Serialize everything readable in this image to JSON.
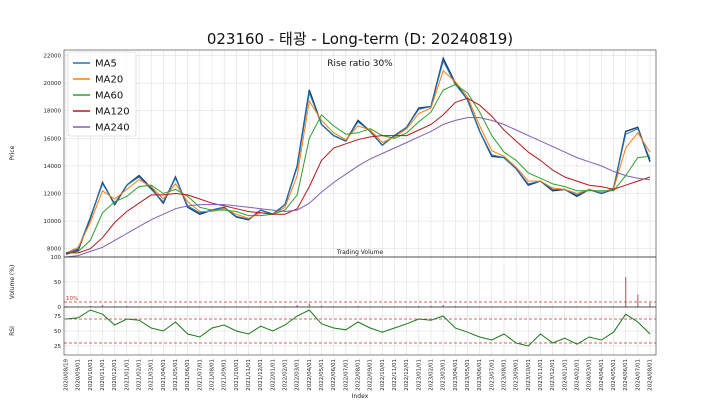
{
  "chart_data": {
    "type": "line",
    "title": "023160 - 태광 - Long-term (D: 20240819)",
    "annotation": "Rise ratio 30%",
    "price_panel": {
      "ylabel": "Price",
      "ylim": [
        7400,
        22400
      ],
      "yticks": [
        8000,
        10000,
        12000,
        14000,
        16000,
        18000,
        20000,
        22000
      ],
      "legend": [
        "MA5",
        "MA20",
        "MA60",
        "MA120",
        "MA240"
      ],
      "legend_position": "top-left",
      "series_colors": {
        "price": "#1f3b73",
        "MA5": "#1f77b4",
        "MA20": "#ff7f0e",
        "MA60": "#2ca02c",
        "MA120": "#b01b1b",
        "MA240": "#8060b0"
      }
    },
    "volume_panel": {
      "title": "Trading Volume",
      "ylabel": "Volume (%)",
      "ylim": [
        0,
        100
      ],
      "yticks": [
        0,
        50,
        100
      ],
      "threshold": 10,
      "threshold_label": "10%"
    },
    "rsi_panel": {
      "ylabel": "RSI",
      "ylim": [
        10,
        90
      ],
      "yticks": [
        25,
        50,
        75
      ],
      "overbought": 70,
      "oversold": 30
    },
    "xlabel": "Index",
    "x_dates": [
      "2020/08/19",
      "2020/09/01",
      "2020/10/01",
      "2020/11/01",
      "2020/12/01",
      "2021/01/01",
      "2021/02/01",
      "2021/03/01",
      "2021/04/01",
      "2021/05/01",
      "2021/06/01",
      "2021/07/01",
      "2021/08/01",
      "2021/09/01",
      "2021/10/01",
      "2021/11/01",
      "2021/12/01",
      "2022/01/01",
      "2022/02/01",
      "2022/03/01",
      "2022/04/01",
      "2022/05/01",
      "2022/06/01",
      "2022/07/01",
      "2022/08/01",
      "2022/09/01",
      "2022/10/01",
      "2022/11/01",
      "2022/12/01",
      "2023/01/01",
      "2023/02/01",
      "2023/03/01",
      "2023/04/01",
      "2023/05/01",
      "2023/06/01",
      "2023/07/01",
      "2023/08/01",
      "2023/09/01",
      "2023/10/01",
      "2023/11/01",
      "2023/12/01",
      "2024/01/01",
      "2024/02/01",
      "2024/03/01",
      "2024/04/01",
      "2024/05/01",
      "2024/06/01",
      "2024/07/01",
      "2024/08/01"
    ],
    "price_close": [
      7600,
      7900,
      10200,
      12800,
      11200,
      12600,
      13300,
      12400,
      11300,
      13200,
      11000,
      10500,
      10800,
      11000,
      10300,
      10100,
      10800,
      10500,
      11200,
      14000,
      19500,
      17000,
      16200,
      15800,
      17300,
      16500,
      15500,
      16200,
      16800,
      18200,
      18300,
      21800,
      20000,
      18800,
      16500,
      14700,
      14600,
      13800,
      12600,
      12900,
      12200,
      12300,
      11800,
      12300,
      12000,
      12300,
      16500,
      16800,
      14300
    ],
    "series": [
      {
        "name": "MA5",
        "values": [
          7650,
          8000,
          10300,
          12700,
          11300,
          12600,
          13200,
          12300,
          11400,
          13100,
          11100,
          10600,
          10800,
          11000,
          10350,
          10150,
          10800,
          10500,
          11200,
          13900,
          19300,
          17000,
          16200,
          15800,
          17200,
          16500,
          15500,
          16200,
          16800,
          18100,
          18300,
          21600,
          19900,
          18800,
          16500,
          14800,
          14600,
          13800,
          12700,
          12900,
          12300,
          12300,
          11900,
          12300,
          12000,
          12400,
          16300,
          16700,
          14500
        ]
      },
      {
        "name": "MA20",
        "values": [
          7700,
          8100,
          9900,
          12200,
          11600,
          12300,
          13000,
          12500,
          11600,
          12700,
          11400,
          10700,
          10700,
          10900,
          10500,
          10200,
          10600,
          10500,
          11000,
          13300,
          18700,
          17300,
          16400,
          15900,
          16900,
          16600,
          15700,
          16100,
          16700,
          17800,
          18200,
          20900,
          20100,
          19000,
          16900,
          15100,
          14700,
          13900,
          12900,
          12900,
          12400,
          12300,
          12000,
          12300,
          12100,
          12300,
          15300,
          16400,
          15000
        ]
      },
      {
        "name": "MA60",
        "values": [
          7700,
          7800,
          8600,
          10600,
          11400,
          11800,
          12500,
          12600,
          12000,
          12300,
          11800,
          11000,
          10800,
          10800,
          10700,
          10400,
          10400,
          10500,
          10800,
          11900,
          16000,
          17700,
          16900,
          16300,
          16400,
          16700,
          16200,
          16000,
          16400,
          17200,
          17900,
          19500,
          19900,
          19300,
          17900,
          16200,
          15000,
          14400,
          13500,
          13100,
          12700,
          12500,
          12200,
          12200,
          12200,
          12200,
          13300,
          14600,
          14700
        ]
      },
      {
        "name": "MA120",
        "values": [
          7700,
          7700,
          8000,
          8800,
          9900,
          10700,
          11300,
          11900,
          11900,
          12000,
          11900,
          11600,
          11300,
          11100,
          10900,
          10700,
          10600,
          10500,
          10500,
          10900,
          12500,
          14400,
          15300,
          15600,
          15900,
          16100,
          16200,
          16200,
          16200,
          16600,
          17000,
          17700,
          18600,
          18900,
          18400,
          17600,
          16600,
          15800,
          15000,
          14400,
          13700,
          13200,
          12900,
          12600,
          12500,
          12300,
          12600,
          12900,
          13200
        ]
      },
      {
        "name": "MA240",
        "values": [
          7400,
          7500,
          7800,
          8100,
          8600,
          9100,
          9600,
          10100,
          10500,
          10900,
          11100,
          11200,
          11200,
          11200,
          11100,
          11000,
          10900,
          10800,
          10700,
          10800,
          11300,
          12100,
          12800,
          13400,
          14000,
          14500,
          14900,
          15300,
          15700,
          16100,
          16500,
          17000,
          17300,
          17500,
          17500,
          17300,
          17000,
          16600,
          16200,
          15800,
          15400,
          15000,
          14600,
          14300,
          14000,
          13600,
          13300,
          13100,
          13000
        ]
      }
    ],
    "volume_spikes": [
      1.5,
      1,
      2,
      4,
      1.5,
      2,
      1,
      1,
      0.8,
      1,
      0.8,
      0.5,
      0.5,
      0.5,
      0.6,
      0.5,
      0.5,
      0.6,
      1.5,
      4,
      7,
      3,
      1.5,
      1,
      2,
      1,
      1,
      1,
      1.2,
      2,
      2.5,
      4,
      2,
      1.5,
      1,
      1,
      0.8,
      0.8,
      0.6,
      0.6,
      0.6,
      0.7,
      0.6,
      0.8,
      1,
      1.5,
      60,
      25,
      8
    ],
    "rsi_values": [
      70,
      72,
      85,
      78,
      60,
      70,
      68,
      55,
      50,
      65,
      45,
      40,
      55,
      60,
      50,
      45,
      58,
      50,
      60,
      75,
      85,
      62,
      55,
      52,
      65,
      55,
      48,
      55,
      62,
      70,
      68,
      75,
      55,
      48,
      40,
      35,
      45,
      30,
      25,
      45,
      30,
      38,
      28,
      40,
      35,
      48,
      78,
      65,
      45
    ]
  }
}
